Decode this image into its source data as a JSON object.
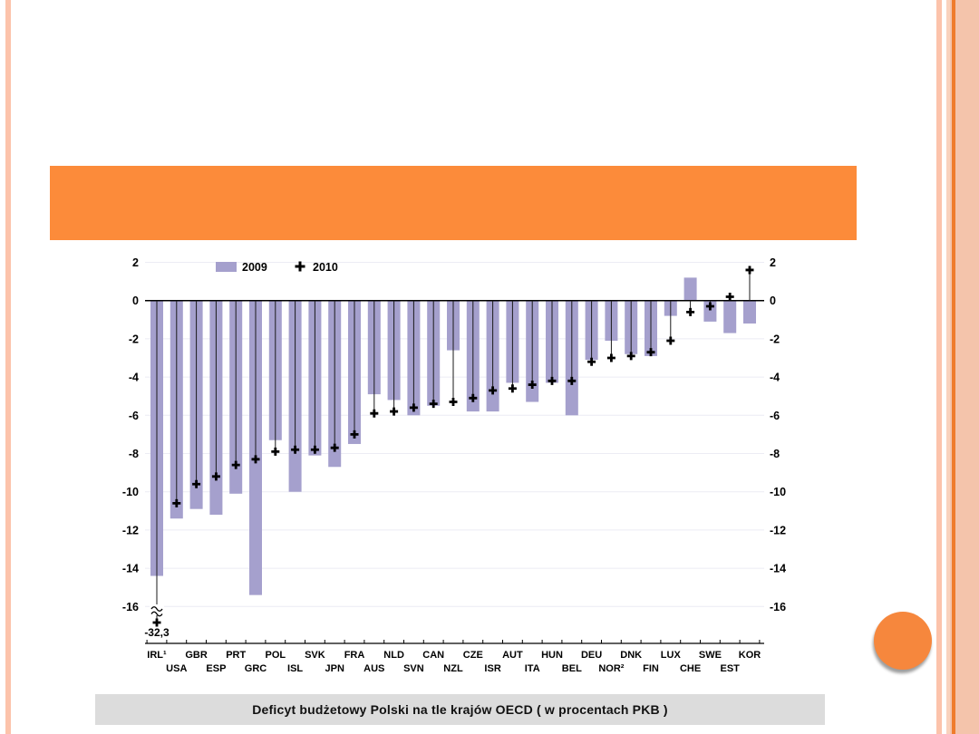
{
  "slide": {
    "header_bar_text": "",
    "caption": "Deficyt budżetowy Polski na tle krajów OECD ( w procentach PKB )"
  },
  "colors": {
    "header_bar": "#fc8b3a",
    "accent_circle": "#f6873d",
    "side_stripe": "#fcc3ab",
    "side_band": "#f4c4ab",
    "side_band_line": "#ef7c2c",
    "caption_bg": "#dcdcdc",
    "bar_2009": "#a5a0cd",
    "marker_2010": "#000000",
    "gridline": "#ececf4",
    "axis": "#000000"
  },
  "chart_data": {
    "type": "bar",
    "title": "",
    "legend": [
      "2009",
      "2010"
    ],
    "legend_position": "top-left-inside",
    "grid": "horizontal",
    "ylim": [
      -16,
      2
    ],
    "yticks": [
      2,
      0,
      -2,
      -4,
      -6,
      -8,
      -10,
      -12,
      -14,
      -16
    ],
    "y_axis_sides": "both",
    "axis_break": {
      "category": "IRL¹",
      "label": "-32,3",
      "actual_value": -32.3
    },
    "categories": [
      "IRL¹",
      "USA",
      "GBR",
      "ESP",
      "PRT",
      "GRC",
      "POL",
      "ISL",
      "SVK",
      "JPN",
      "FRA",
      "AUS",
      "NLD",
      "SVN",
      "CAN",
      "NZL",
      "CZE",
      "ISR",
      "AUT",
      "ITA",
      "HUN",
      "BEL",
      "DEU",
      "NOR²",
      "DNK",
      "FIN",
      "LUX",
      "CHE",
      "SWE",
      "EST",
      "KOR"
    ],
    "series": [
      {
        "name": "2009",
        "type": "bar",
        "values": [
          -14.4,
          -11.4,
          -10.9,
          -11.2,
          -10.1,
          -15.4,
          -7.3,
          -10.0,
          -8.1,
          -8.7,
          -7.5,
          -4.9,
          -5.2,
          -6.0,
          -5.5,
          -2.6,
          -5.8,
          -5.8,
          -4.3,
          -5.3,
          -4.3,
          -6.0,
          -3.1,
          -2.1,
          -2.8,
          -2.9,
          -0.8,
          1.2,
          -1.1,
          -1.7,
          -1.2
        ]
      },
      {
        "name": "2010",
        "type": "plus-marker",
        "values": [
          -32.3,
          -10.6,
          -9.6,
          -9.2,
          -8.6,
          -8.3,
          -7.9,
          -7.8,
          -7.8,
          -7.7,
          -7.0,
          -5.9,
          -5.8,
          -5.6,
          -5.4,
          -5.3,
          -5.1,
          -4.7,
          -4.6,
          -4.4,
          -4.2,
          -4.2,
          -3.2,
          -3.0,
          -2.9,
          -2.7,
          -2.1,
          -0.6,
          -0.3,
          0.2,
          1.6
        ]
      }
    ]
  }
}
